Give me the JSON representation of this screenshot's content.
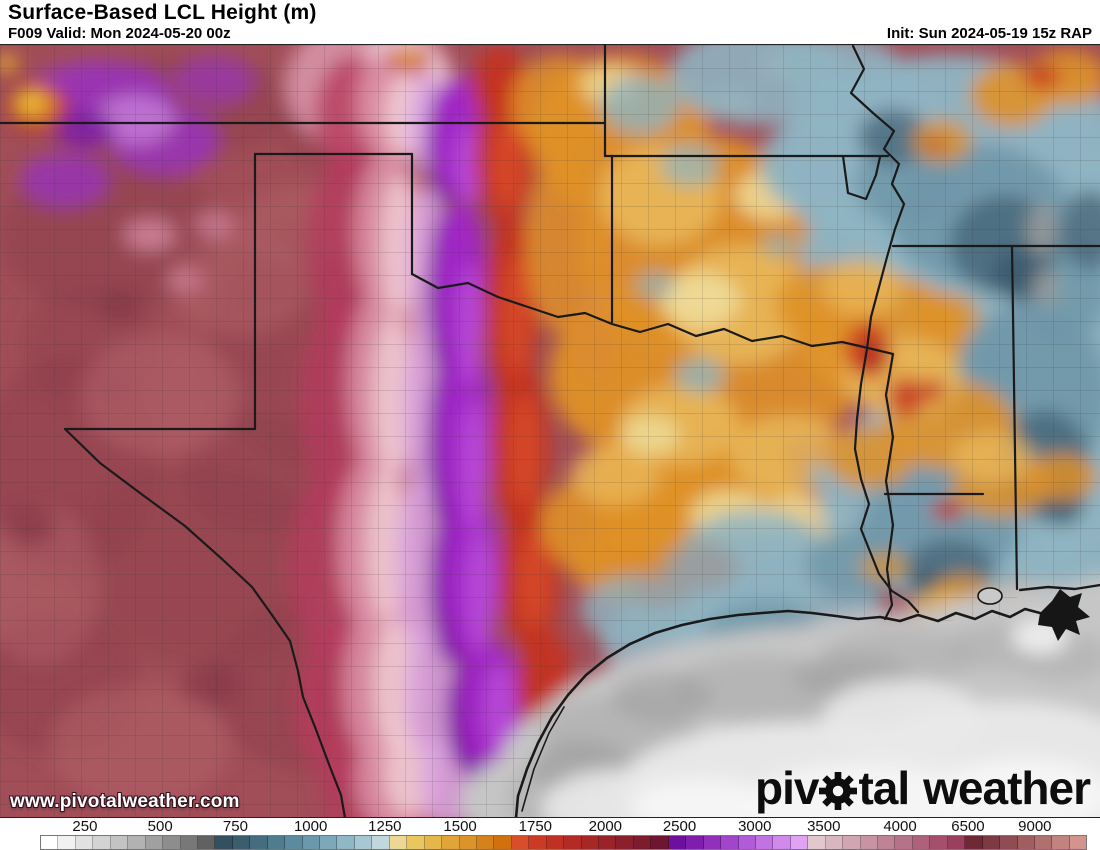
{
  "header": {
    "title": "Surface-Based LCL Height (m)",
    "valid": "F009 Valid: Mon 2024-05-20 00z",
    "init": "Init: Sun 2024-05-19 15z RAP"
  },
  "watermark": "www.pivotalweather.com",
  "logo": {
    "part1": "piv",
    "part2": "tal",
    "part3": "weather",
    "icon": "gear-icon"
  },
  "colorbar": {
    "unit": "m",
    "labels": [
      {
        "value": "250",
        "pct": 4.3
      },
      {
        "value": "500",
        "pct": 11.5
      },
      {
        "value": "750",
        "pct": 18.7
      },
      {
        "value": "1000",
        "pct": 25.9
      },
      {
        "value": "1250",
        "pct": 33.0
      },
      {
        "value": "1500",
        "pct": 40.2
      },
      {
        "value": "1750",
        "pct": 47.4
      },
      {
        "value": "2000",
        "pct": 54.1
      },
      {
        "value": "2500",
        "pct": 61.2
      },
      {
        "value": "3000",
        "pct": 68.4
      },
      {
        "value": "3500",
        "pct": 75.0
      },
      {
        "value": "4000",
        "pct": 82.3
      },
      {
        "value": "6500",
        "pct": 88.8
      },
      {
        "value": "9000",
        "pct": 95.2
      }
    ],
    "cells": [
      "#ffffff",
      "#f1f1f1",
      "#e2e2e2",
      "#d3d3d3",
      "#c3c3c3",
      "#b2b2b2",
      "#a0a0a0",
      "#8d8d8d",
      "#787878",
      "#616161",
      "#32505f",
      "#3b5e6f",
      "#456d80",
      "#507c90",
      "#5c8ba0",
      "#6a99ad",
      "#7ca8b9",
      "#90b7c5",
      "#a7c7d2",
      "#c0d7de",
      "#eed795",
      "#e9c65e",
      "#e5b649",
      "#e0a538",
      "#db9429",
      "#d5821c",
      "#d0700f",
      "#d84e2b",
      "#cb3a24",
      "#bf3123",
      "#b22c25",
      "#a52827",
      "#982429",
      "#8a202b",
      "#7c1c2e",
      "#6d1531",
      "#6e109e",
      "#7f1dad",
      "#9030bc",
      "#a146ca",
      "#b15cd6",
      "#c173e1",
      "#d08aea",
      "#e0a2f2",
      "#e3c7ce",
      "#dab6c0",
      "#d1a5b2",
      "#c894a4",
      "#bf8396",
      "#b67288",
      "#ad617a",
      "#a4506c",
      "#9b3f5e",
      "#6e2836",
      "#7e3a43",
      "#8f4c52",
      "#a05e61",
      "#b17070",
      "#c2827f",
      "#d3948e"
    ]
  }
}
